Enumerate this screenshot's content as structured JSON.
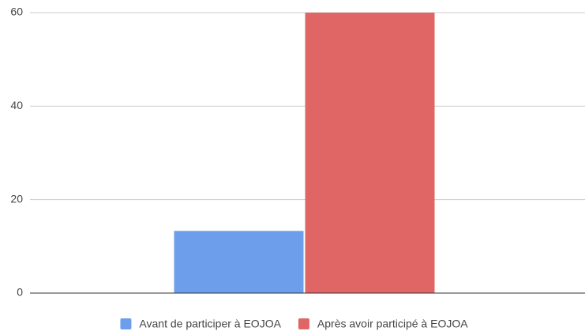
{
  "chart_data": {
    "type": "bar",
    "categories": [
      null
    ],
    "series": [
      {
        "name": "Avant de participer à EOJOA",
        "color": "#6d9eeb",
        "values": [
          13.3
        ]
      },
      {
        "name": "Après avoir participé à EOJOA",
        "color": "#e06666",
        "values": [
          60
        ]
      }
    ],
    "ylim": [
      0,
      60
    ],
    "yticks": [
      0,
      20,
      40,
      60
    ],
    "grid": true,
    "legend": "bottom"
  }
}
